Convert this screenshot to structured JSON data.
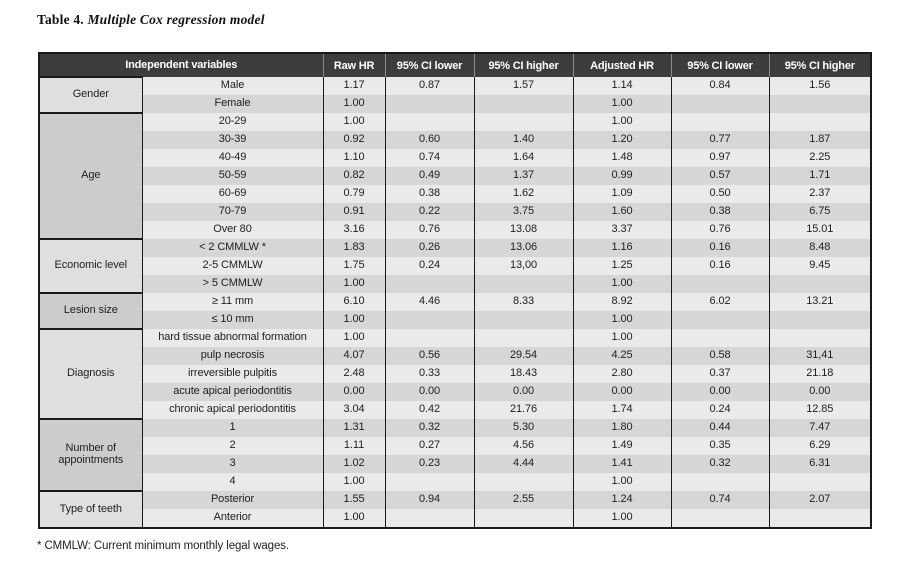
{
  "title": {
    "prefix": "Table 4.",
    "text": "Multiple Cox regression model"
  },
  "table": {
    "header": {
      "independent_variables": "Independent variables",
      "columns": [
        "Raw HR",
        "95% CI lower",
        "95% CI higher",
        "Adjusted HR",
        "95% CI lower",
        "95% CI higher"
      ]
    },
    "groups": [
      {
        "category": "Gender",
        "rows": [
          {
            "label": "Male",
            "values": [
              "1.17",
              "0.87",
              "1.57",
              "1.14",
              "0.84",
              "1.56"
            ]
          },
          {
            "label": "Female",
            "values": [
              "1.00",
              "",
              "",
              "1.00",
              "",
              ""
            ]
          }
        ]
      },
      {
        "category": "Age",
        "rows": [
          {
            "label": "20-29",
            "values": [
              "1.00",
              "",
              "",
              "1.00",
              "",
              ""
            ]
          },
          {
            "label": "30-39",
            "values": [
              "0.92",
              "0.60",
              "1.40",
              "1.20",
              "0.77",
              "1.87"
            ]
          },
          {
            "label": "40-49",
            "values": [
              "1.10",
              "0.74",
              "1.64",
              "1.48",
              "0.97",
              "2.25"
            ]
          },
          {
            "label": "50-59",
            "values": [
              "0.82",
              "0.49",
              "1.37",
              "0.99",
              "0.57",
              "1.71"
            ]
          },
          {
            "label": "60-69",
            "values": [
              "0.79",
              "0.38",
              "1.62",
              "1.09",
              "0.50",
              "2.37"
            ]
          },
          {
            "label": "70-79",
            "values": [
              "0.91",
              "0.22",
              "3.75",
              "1.60",
              "0.38",
              "6.75"
            ]
          },
          {
            "label": "Over 80",
            "values": [
              "3.16",
              "0.76",
              "13.08",
              "3.37",
              "0.76",
              "15.01"
            ]
          }
        ]
      },
      {
        "category": "Economic level",
        "rows": [
          {
            "label": "< 2 CMMLW *",
            "values": [
              "1.83",
              "0.26",
              "13.06",
              "1.16",
              "0.16",
              "8.48"
            ]
          },
          {
            "label": "2-5 CMMLW",
            "values": [
              "1.75",
              "0.24",
              "13,00",
              "1.25",
              "0.16",
              "9.45"
            ]
          },
          {
            "label": "> 5 CMMLW",
            "values": [
              "1.00",
              "",
              "",
              "1.00",
              "",
              ""
            ]
          }
        ]
      },
      {
        "category": "Lesion size",
        "rows": [
          {
            "label": "≥ 11 mm",
            "values": [
              "6.10",
              "4.46",
              "8.33",
              "8.92",
              "6.02",
              "13.21"
            ]
          },
          {
            "label": "≤ 10 mm",
            "values": [
              "1.00",
              "",
              "",
              "1.00",
              "",
              ""
            ]
          }
        ]
      },
      {
        "category": "Diagnosis",
        "rows": [
          {
            "label": "hard tissue abnormal formation",
            "values": [
              "1.00",
              "",
              "",
              "1.00",
              "",
              ""
            ]
          },
          {
            "label": "pulp necrosis",
            "values": [
              "4.07",
              "0.56",
              "29.54",
              "4.25",
              "0.58",
              "31,41"
            ]
          },
          {
            "label": "irreversible pulpitis",
            "values": [
              "2.48",
              "0.33",
              "18.43",
              "2.80",
              "0.37",
              "21.18"
            ]
          },
          {
            "label": "acute apical periodontitis",
            "values": [
              "0.00",
              "0.00",
              "0.00",
              "0.00",
              "0.00",
              "0.00"
            ]
          },
          {
            "label": "chronic apical periodontitis",
            "values": [
              "3.04",
              "0.42",
              "21.76",
              "1.74",
              "0.24",
              "12.85"
            ]
          }
        ]
      },
      {
        "category": "Number of appointments",
        "rows": [
          {
            "label": "1",
            "values": [
              "1.31",
              "0.32",
              "5.30",
              "1.80",
              "0.44",
              "7.47"
            ]
          },
          {
            "label": "2",
            "values": [
              "1.11",
              "0.27",
              "4.56",
              "1.49",
              "0.35",
              "6.29"
            ]
          },
          {
            "label": "3",
            "values": [
              "1.02",
              "0.23",
              "4.44",
              "1.41",
              "0.32",
              "6.31"
            ]
          },
          {
            "label": "4",
            "values": [
              "1.00",
              "",
              "",
              "1.00",
              "",
              ""
            ]
          }
        ]
      },
      {
        "category": "Type of teeth",
        "rows": [
          {
            "label": "Posterior",
            "values": [
              "1.55",
              "0.94",
              "2.55",
              "1.24",
              "0.74",
              "2.07"
            ]
          },
          {
            "label": "Anterior",
            "values": [
              "1.00",
              "",
              "",
              "1.00",
              "",
              ""
            ]
          }
        ]
      }
    ]
  },
  "footnote": "* CMMLW: Current minimum monthly legal wages.",
  "colors": {
    "header_bg": "#3d3d3d",
    "header_text": "#ffffff",
    "stripe_light": "#eaeaea",
    "stripe_dark": "#d6d6d6",
    "category_light": "#dfdfdf",
    "category_dark": "#cccccc",
    "border": "#1a1a1a"
  }
}
